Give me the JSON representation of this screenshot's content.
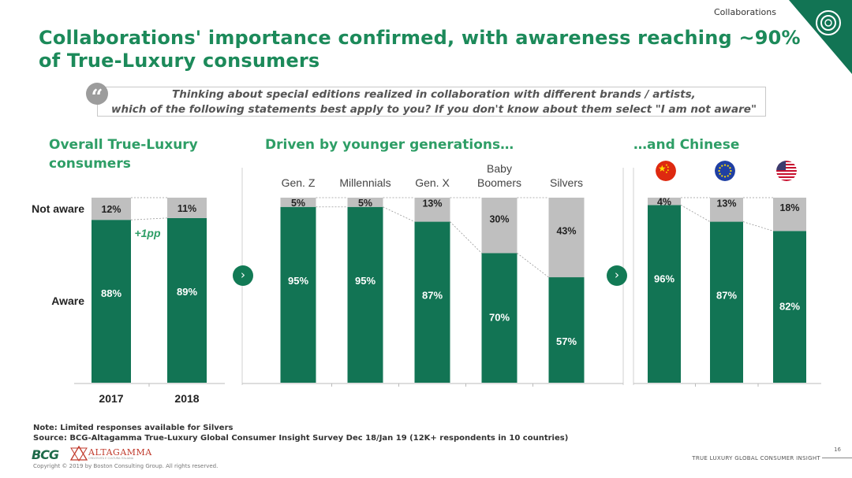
{
  "header": {
    "section_tag": "Collaborations",
    "title": "Collaborations' importance confirmed, with awareness reaching ~90% of True-Luxury consumers"
  },
  "question": {
    "line1": "Thinking about special editions realized in collaboration with different brands / artists,",
    "line2": "which of the following statements best apply to you? If you don't know about them select \"I am not aware\""
  },
  "panels": {
    "overall_title_1": "Overall True-Luxury",
    "overall_title_2": "consumers",
    "generations_title": "Driven by younger generations…",
    "chinese_title": "…and Chinese"
  },
  "row_labels": {
    "not_aware": "Not aware",
    "aware": "Aware"
  },
  "annotation": "+1pp",
  "chart_data": [
    {
      "type": "bar",
      "stacked": true,
      "categories": [
        "2017",
        "2018"
      ],
      "series": [
        {
          "name": "Aware",
          "values": [
            88,
            89
          ]
        },
        {
          "name": "Not aware",
          "values": [
            12,
            11
          ]
        }
      ],
      "labels_aware": [
        "88%",
        "89%"
      ],
      "labels_not_aware": [
        "12%",
        "11%"
      ]
    },
    {
      "type": "bar",
      "stacked": true,
      "categories": [
        "Gen. Z",
        "Millennials",
        "Gen. X",
        "Baby Boomers",
        "Silvers"
      ],
      "category_lines": [
        [
          "Gen. Z"
        ],
        [
          "Millennials"
        ],
        [
          "Gen. X"
        ],
        [
          "Baby",
          "Boomers"
        ],
        [
          "Silvers"
        ]
      ],
      "series": [
        {
          "name": "Aware",
          "values": [
            95,
            95,
            87,
            70,
            57
          ]
        },
        {
          "name": "Not aware",
          "values": [
            5,
            5,
            13,
            30,
            43
          ]
        }
      ],
      "labels_aware": [
        "95%",
        "95%",
        "87%",
        "70%",
        "57%"
      ],
      "labels_not_aware": [
        "5%",
        "5%",
        "13%",
        "30%",
        "43%"
      ]
    },
    {
      "type": "bar",
      "stacked": true,
      "categories": [
        "China",
        "Europe",
        "USA"
      ],
      "series": [
        {
          "name": "Aware",
          "values": [
            96,
            87,
            82
          ]
        },
        {
          "name": "Not aware",
          "values": [
            4,
            13,
            18
          ]
        }
      ],
      "labels_aware": [
        "96%",
        "87%",
        "82%"
      ],
      "labels_not_aware": [
        "4%",
        "13%",
        "18%"
      ]
    }
  ],
  "colors": {
    "aware": "#127454",
    "not_aware": "#bfbfbf",
    "accent": "#2e9e66"
  },
  "icons": {
    "quote": "quote-icon",
    "next_arrow": "chevron-right-icon",
    "flags": [
      "china-flag-icon",
      "eu-flag-icon",
      "usa-flag-icon"
    ]
  },
  "footer": {
    "note": "Note: Limited responses available for Silvers",
    "source": "Source: BCG-Altagamma True-Luxury Global Consumer Insight Survey Dec 18/Jan 19 (12K+ respondents in 10 countries)",
    "copyright": "Copyright © 2019 by Boston Consulting Group. All rights reserved.",
    "report_title": "TRUE LUXURY GLOBAL CONSUMER INSIGHT",
    "page_number": "16",
    "logo_bcg": "BCG",
    "logo_altagamma": "ALTAGAMMA",
    "logo_altagamma_sub": "CREATIVITÀ E CULTURA ITALIANA"
  }
}
